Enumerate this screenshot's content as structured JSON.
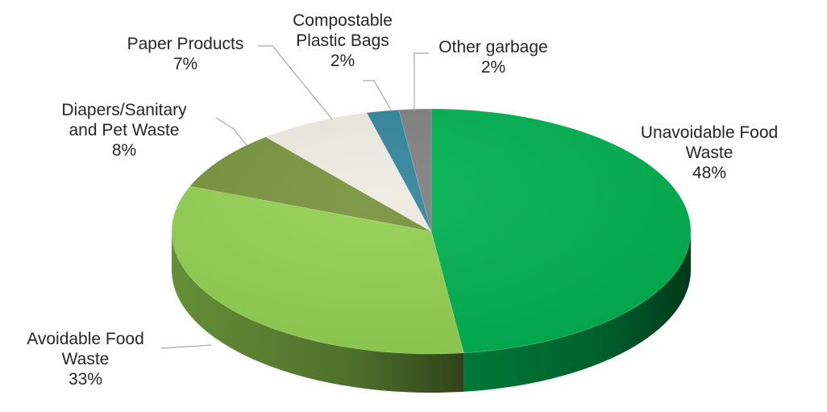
{
  "chart_data": {
    "type": "pie",
    "style": "3d",
    "title": "",
    "legend": "none",
    "start_angle_deg": 0,
    "direction": "clockwise",
    "slices": [
      {
        "label_lines": [
          "Unavoidable Food",
          "Waste"
        ],
        "value": 48,
        "value_label": "48%",
        "color": "#00B050"
      },
      {
        "label_lines": [
          "Avoidable Food",
          "Waste"
        ],
        "value": 33,
        "value_label": "33%",
        "color": "#92D050"
      },
      {
        "label_lines": [
          "Diapers/Sanitary",
          "and Pet Waste"
        ],
        "value": 8,
        "value_label": "8%",
        "color": "#77933C"
      },
      {
        "label_lines": [
          "Paper Products"
        ],
        "value": 7,
        "value_label": "7%",
        "color": "#EEECE1"
      },
      {
        "label_lines": [
          "Compostable",
          "Plastic Bags"
        ],
        "value": 2,
        "value_label": "2%",
        "color": "#31849B"
      },
      {
        "label_lines": [
          "Other garbage"
        ],
        "value": 2,
        "value_label": "2%",
        "color": "#7F7F7F"
      }
    ]
  }
}
